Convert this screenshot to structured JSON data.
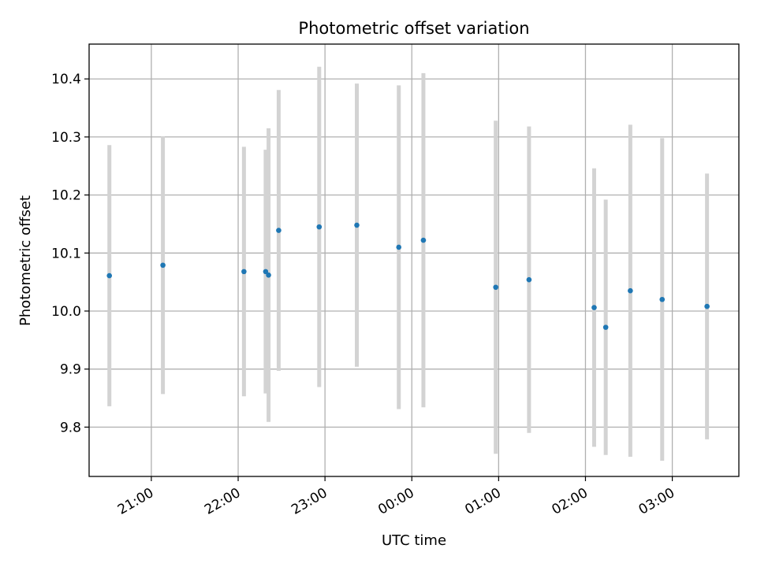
{
  "chart_data": {
    "type": "scatter",
    "title": "Photometric offset variation",
    "xlabel": "UTC time",
    "ylabel": "Photometric offset",
    "grid": true,
    "x_ticks": [
      "21:00",
      "22:00",
      "23:00",
      "00:00",
      "01:00",
      "02:00",
      "03:00"
    ],
    "y_ticks": [
      "9.8",
      "9.9",
      "10.0",
      "10.1",
      "10.2",
      "10.3",
      "10.4"
    ],
    "xlim": [
      "20:17",
      "03:46"
    ],
    "ylim": [
      9.715,
      10.46
    ],
    "colors": {
      "point": "#1f77b4",
      "errorbar": "#d3d3d3",
      "grid": "#b0b0b0"
    },
    "points": [
      {
        "x": "20:31",
        "y": 10.061,
        "err": 0.225
      },
      {
        "x": "21:08",
        "y": 10.079,
        "err": 0.222
      },
      {
        "x": "22:04",
        "y": 10.068,
        "err": 0.215
      },
      {
        "x": "22:19",
        "y": 10.068,
        "err": 0.21
      },
      {
        "x": "22:21",
        "y": 10.062,
        "err": 0.253
      },
      {
        "x": "22:28",
        "y": 10.139,
        "err": 0.242
      },
      {
        "x": "22:56",
        "y": 10.145,
        "err": 0.276
      },
      {
        "x": "23:22",
        "y": 10.148,
        "err": 0.244
      },
      {
        "x": "23:51",
        "y": 10.11,
        "err": 0.279
      },
      {
        "x": "00:08",
        "y": 10.122,
        "err": 0.288
      },
      {
        "x": "00:58",
        "y": 10.041,
        "err": 0.287
      },
      {
        "x": "01:21",
        "y": 10.054,
        "err": 0.264
      },
      {
        "x": "02:06",
        "y": 10.006,
        "err": 0.24
      },
      {
        "x": "02:14",
        "y": 9.972,
        "err": 0.22
      },
      {
        "x": "02:31",
        "y": 10.035,
        "err": 0.286
      },
      {
        "x": "02:53",
        "y": 10.02,
        "err": 0.278
      },
      {
        "x": "03:24",
        "y": 10.008,
        "err": 0.229
      }
    ]
  }
}
